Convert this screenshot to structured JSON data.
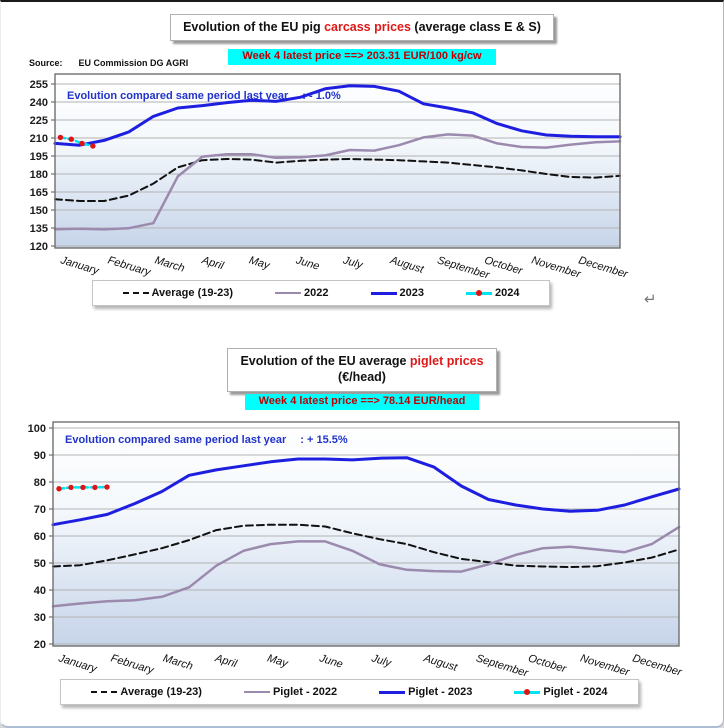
{
  "page": {
    "header1": {
      "title_pre": "Evolution of the EU pig ",
      "title_red": "carcass prices",
      "title_post": " (average class E & S)",
      "banner": "Week 4 latest price ==>  203.31 EUR/100 kg/cw"
    },
    "source": {
      "label": "Source:",
      "value": "EU Commission DG AGRI"
    },
    "header2": {
      "title_pre": "Evolution of the EU average ",
      "title_red": "piglet prices",
      "title_line2": "(€/head)",
      "banner": "Week 4 latest price ==>  78.14 EUR/head"
    },
    "return_symbol": "↵"
  },
  "colors": {
    "banner_bg": "#00ffff",
    "banner_text": "#c00000",
    "title_accent": "#e01818",
    "annotation_text": "#2233cc",
    "grid_line": "#b3b3b3",
    "plot_frame": "#6f6f6f",
    "plot_fill_bottom": "#c6d4e9"
  },
  "chart_data": [
    {
      "id": "carcass",
      "type": "line",
      "title": "Evolution of the EU pig carcass prices (average class E & S)",
      "ylabel": "EUR/100 kg/cw",
      "ylim": [
        120,
        255
      ],
      "ytick": 15,
      "grid": true,
      "legend_position": "bottom",
      "annotation": {
        "text": "Evolution compared same period last year",
        "value": ": - 1.0%"
      },
      "months": [
        "January",
        "February",
        "March",
        "April",
        "May",
        "June",
        "July",
        "August",
        "September",
        "October",
        "November",
        "December"
      ],
      "series": [
        {
          "name": "Average (19-23)",
          "color": "#111111",
          "width": 2,
          "dash": "7,4",
          "values": [
            159,
            157.5,
            157.5,
            162,
            172,
            185.5,
            191.5,
            192.5,
            192,
            189.5,
            191,
            192,
            192.5,
            192,
            191.5,
            190.5,
            189.5,
            187.5,
            185.5,
            183,
            180,
            177.5,
            177,
            178.5
          ]
        },
        {
          "name": "2022",
          "color": "#9b8aae",
          "width": 2.5,
          "dash": null,
          "values": [
            134,
            134.3,
            133.8,
            134.8,
            139,
            178,
            194.5,
            196.5,
            196.5,
            193.5,
            194,
            195.5,
            200,
            199.5,
            204,
            210.5,
            213,
            212,
            205.5,
            202.5,
            202,
            204.5,
            206.5,
            207.2
          ]
        },
        {
          "name": "2023",
          "color": "#1e1ee0",
          "width": 3,
          "dash": null,
          "values": [
            205.5,
            204,
            208,
            215,
            228,
            235,
            237,
            239.5,
            241.5,
            240.5,
            244,
            251,
            253.5,
            253,
            249,
            238.5,
            235,
            231,
            222,
            216,
            212.5,
            211.5,
            211,
            211
          ]
        },
        {
          "name": "2024",
          "color": "#00e4f2",
          "width": 2.5,
          "dash": "5,3",
          "weekly": true,
          "marker_color": "#e01414",
          "values": [
            210.5,
            209,
            205.5,
            203.31
          ]
        }
      ]
    },
    {
      "id": "piglet",
      "type": "line",
      "title": "Evolution of the EU average piglet prices (€/head)",
      "ylabel": "EUR/head",
      "ylim": [
        20,
        100
      ],
      "ytick": 10,
      "grid": true,
      "legend_position": "bottom",
      "annotation": {
        "text": "Evolution compared same period last year",
        "value": ": + 15.5%"
      },
      "months": [
        "January",
        "February",
        "March",
        "April",
        "May",
        "June",
        "July",
        "August",
        "September",
        "October",
        "November",
        "December"
      ],
      "series": [
        {
          "name": "Average (19-23)",
          "color": "#111111",
          "width": 2,
          "dash": "7,4",
          "values": [
            48.7,
            49.2,
            51,
            53.2,
            55.5,
            58.5,
            62.2,
            63.8,
            64.2,
            64.2,
            63.5,
            61,
            58.8,
            57,
            54,
            51.5,
            50.3,
            49,
            48.7,
            48.5,
            48.8,
            50.2,
            52,
            55
          ]
        },
        {
          "name": "Piglet - 2022",
          "color": "#9b8aae",
          "width": 2.5,
          "dash": null,
          "values": [
            34,
            35,
            35.8,
            36.2,
            37.5,
            41,
            49,
            54.5,
            57,
            58,
            58,
            54.5,
            49.5,
            47.5,
            47,
            46.8,
            49.5,
            53,
            55.5,
            56,
            55,
            54,
            57,
            63.3
          ]
        },
        {
          "name": "Piglet - 2023",
          "color": "#1e1ee0",
          "width": 3,
          "dash": null,
          "values": [
            64.2,
            66,
            68,
            72,
            76.5,
            82.5,
            84.5,
            86,
            87.5,
            88.5,
            88.5,
            88.2,
            88.8,
            89,
            85.5,
            78.5,
            73.5,
            71.5,
            70,
            69.2,
            69.5,
            71.5,
            74.5,
            77.4
          ]
        },
        {
          "name": "Piglet - 2024",
          "color": "#00e4f2",
          "width": 2.5,
          "dash": "5,3",
          "weekly": true,
          "marker_color": "#e01414",
          "values": [
            77.5,
            78,
            78,
            78,
            78.14
          ]
        }
      ]
    }
  ]
}
